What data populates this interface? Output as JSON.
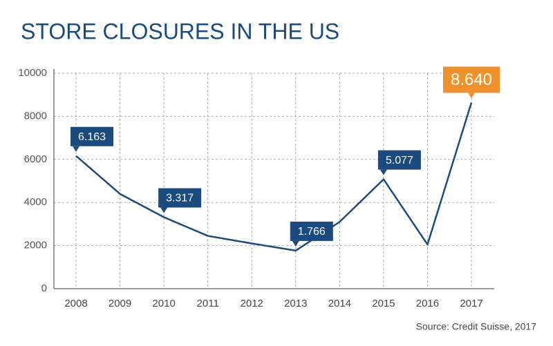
{
  "chart_data": {
    "type": "line",
    "title": "STORE CLOSURES IN THE US",
    "source": "Source: Credit Suisse, 2017",
    "categories": [
      "2008",
      "2009",
      "2010",
      "2011",
      "2012",
      "2013",
      "2014",
      "2015",
      "2016",
      "2017"
    ],
    "values": [
      6163,
      4400,
      3317,
      2450,
      2100,
      1766,
      3100,
      5077,
      2050,
      8640
    ],
    "value_labels": [
      "6.163",
      null,
      "3.317",
      null,
      null,
      "1.766",
      null,
      "5.077",
      null,
      "8.640"
    ],
    "label_colors": [
      "#1b4a7f",
      null,
      "#1b4a7f",
      null,
      null,
      "#1b4a7f",
      null,
      "#1b4a7f",
      null,
      "#f0922b"
    ],
    "color": "#1b4a7f",
    "ylim": [
      0,
      10000
    ],
    "yticks": [
      0,
      2000,
      4000,
      6000,
      8000,
      10000
    ],
    "grid": true
  }
}
